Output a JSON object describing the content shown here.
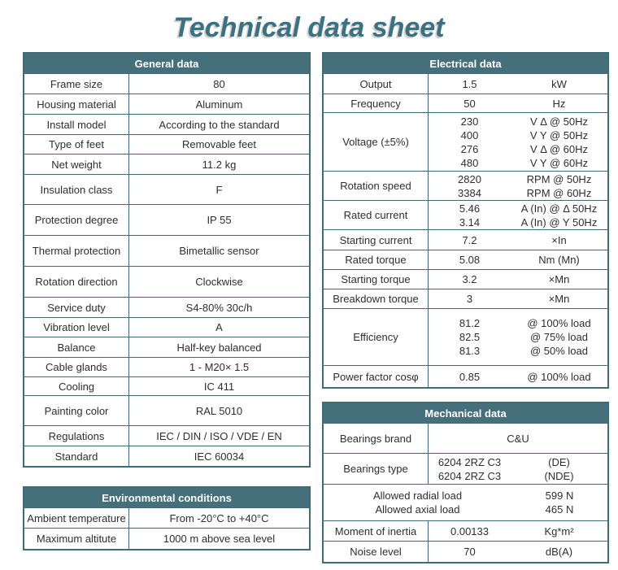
{
  "title": "Technical data sheet",
  "colors": {
    "header-bg": "#45707B",
    "border": "#3E6B75",
    "title": "#3B7282",
    "text": "#2E2E2E"
  },
  "general": {
    "title": "General data",
    "rows": [
      {
        "label": "Frame size",
        "value": "80"
      },
      {
        "label": "Housing material",
        "value": "Aluminum"
      },
      {
        "label": "Install model",
        "value": "According to the standard"
      },
      {
        "label": "Type of feet",
        "value": "Removable feet"
      },
      {
        "label": "Net weight",
        "value": "11.2 kg"
      },
      {
        "label": "Insulation class",
        "value": "F"
      },
      {
        "label": "Protection degree",
        "value": "IP 55"
      },
      {
        "label": "Thermal protection",
        "value": "Bimetallic sensor"
      },
      {
        "label": "Rotation direction",
        "value": "Clockwise"
      },
      {
        "label": "Service duty",
        "value": "S4-80% 30c/h"
      },
      {
        "label": "Vibration level",
        "value": "A"
      },
      {
        "label": "Balance",
        "value": "Half-key balanced"
      },
      {
        "label": "Cable glands",
        "value": "1 - M20× 1.5"
      },
      {
        "label": "Cooling",
        "value": "IC 411"
      },
      {
        "label": "Painting color",
        "value": "RAL 5010"
      },
      {
        "label": "Regulations",
        "value": "IEC / DIN / ISO / VDE / EN"
      },
      {
        "label": "Standard",
        "value": "IEC 60034"
      }
    ]
  },
  "environmental": {
    "title": "Environmental conditions",
    "rows": [
      {
        "label": "Ambient temperature",
        "value": "From -20°C to +40°C"
      },
      {
        "label": "Maximum altitute",
        "value": "1000 m above sea level"
      }
    ]
  },
  "electrical": {
    "title": "Electrical data",
    "rows": [
      {
        "label": "Output",
        "values": [
          "1.5"
        ],
        "units": [
          "kW"
        ]
      },
      {
        "label": "Frequency",
        "values": [
          "50"
        ],
        "units": [
          "Hz"
        ]
      },
      {
        "label": "Voltage (±5%)",
        "values": [
          "230",
          "400",
          "276",
          "480"
        ],
        "units": [
          "V Δ @ 50Hz",
          "V Y @ 50Hz",
          "V Δ @ 60Hz",
          "V Y @ 60Hz"
        ]
      },
      {
        "label": "Rotation speed",
        "values": [
          "2820",
          "3384"
        ],
        "units": [
          "RPM @ 50Hz",
          "RPM @ 60Hz"
        ]
      },
      {
        "label": "Rated current",
        "values": [
          "5.46",
          "3.14"
        ],
        "units": [
          "A (In) @ Δ 50Hz",
          "A (In) @ Y 50Hz"
        ]
      },
      {
        "label": "Starting current",
        "values": [
          "7.2"
        ],
        "units": [
          "×In"
        ]
      },
      {
        "label": "Rated torque",
        "values": [
          "5.08"
        ],
        "units": [
          "Nm (Mn)"
        ]
      },
      {
        "label": "Starting torque",
        "values": [
          "3.2"
        ],
        "units": [
          "×Mn"
        ]
      },
      {
        "label": "Breakdown torque",
        "values": [
          "3"
        ],
        "units": [
          "×Mn"
        ]
      },
      {
        "label": "Efficiency",
        "values": [
          "81.2",
          "82.5",
          "81.3"
        ],
        "units": [
          "@ 100% load",
          "@ 75% load",
          "@ 50% load"
        ]
      },
      {
        "label": "Power factor cosφ",
        "values": [
          "0.85"
        ],
        "units": [
          "@ 100% load"
        ]
      }
    ]
  },
  "mechanical": {
    "title": "Mechanical data",
    "bearings_brand": {
      "label": "Bearings brand",
      "value": "C&U"
    },
    "bearings_type": {
      "label": "Bearings type",
      "values": [
        "6204 2RZ C3",
        "6204 2RZ C3"
      ],
      "units": [
        "(DE)",
        "(NDE)"
      ]
    },
    "allowed_loads": {
      "labels": [
        "Allowed radial load",
        "Allowed axial load"
      ],
      "units": [
        "599 N",
        "465 N"
      ]
    },
    "moment_of_inertia": {
      "label": "Moment of inertia",
      "values": [
        "0.00133"
      ],
      "units": [
        "Kg*m²"
      ]
    },
    "noise_level": {
      "label": "Noise level",
      "values": [
        "70"
      ],
      "units": [
        "dB(A)"
      ]
    }
  }
}
